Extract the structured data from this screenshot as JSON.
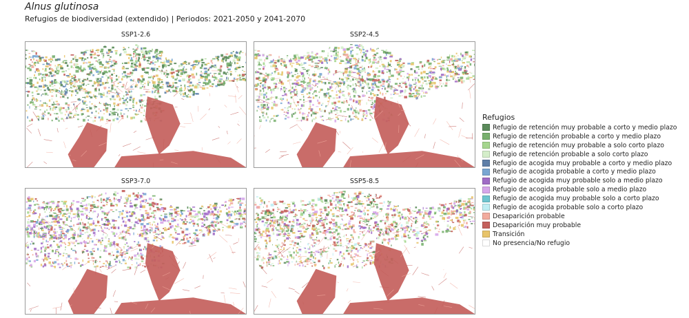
{
  "header": {
    "title": "Alnus glutinosa",
    "subtitle": "Refugios de biodiversidad (extendido) | Periodos: 2021-2050 y 2041-2070"
  },
  "panels": [
    {
      "label": "SSP1-2.6",
      "variant": "p1"
    },
    {
      "label": "SSP2-4.5",
      "variant": "p2"
    },
    {
      "label": "SSP3-7.0",
      "variant": "p3"
    },
    {
      "label": "SSP5-8.5",
      "variant": "p4"
    }
  ],
  "legend": {
    "title": "Refugios",
    "items": [
      {
        "label": "Refugio de retención muy probable a corto y medio plazo",
        "color": "#5a8a5a"
      },
      {
        "label": "Refugio de retención probable a corto y medio plazo",
        "color": "#78b06e"
      },
      {
        "label": "Refugio de retención muy probable a solo corto plazo",
        "color": "#a5d68e"
      },
      {
        "label": "Refugio de retención probable a solo corto plazo",
        "color": "#d4eeca"
      },
      {
        "label": "Refugio de acogida muy probable a corto y medio plazo",
        "color": "#5f7fa8"
      },
      {
        "label": "Refugio de acogida probable a corto y medio plazo",
        "color": "#79a6d2"
      },
      {
        "label": "Refugio de acogida muy probable solo a medio plazo",
        "color": "#a06cc6"
      },
      {
        "label": "Refugio de acogida probable solo a medio plazo",
        "color": "#d6a6ea"
      },
      {
        "label": "Refugio de acogida muy probable solo a corto plazo",
        "color": "#6ec5cf"
      },
      {
        "label": "Refugio de acogida probable solo a corto plazo",
        "color": "#bfeef3"
      },
      {
        "label": "Desaparición probable",
        "color": "#f2ab9e"
      },
      {
        "label": "Desaparición muy probable",
        "color": "#c4605c"
      },
      {
        "label": "Transición",
        "color": "#e8c46a"
      },
      {
        "label": "No presencia/No refugio",
        "color": "#ffffff"
      }
    ]
  }
}
